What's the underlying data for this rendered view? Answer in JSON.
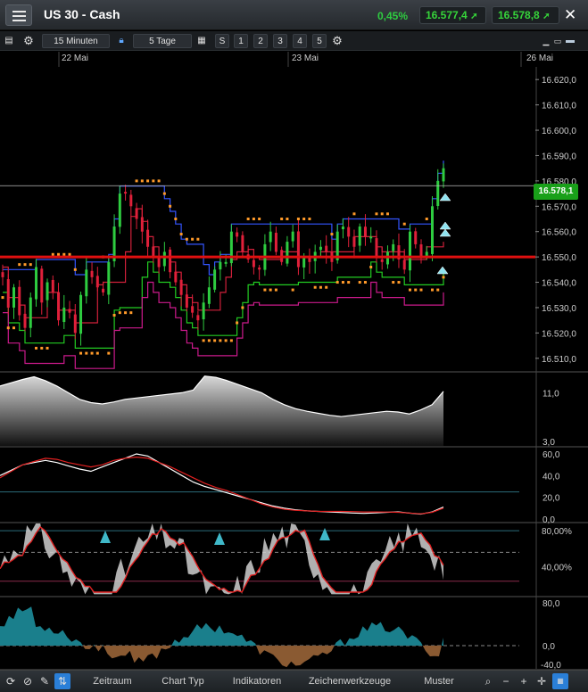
{
  "header": {
    "title": "US 30 - Cash",
    "change_pct": "0,45%",
    "sell_price": "16.577,4",
    "buy_price": "16.578,8"
  },
  "toolbar": {
    "interval": "15 Minuten",
    "range": "5 Tage",
    "studies": [
      "S",
      "1",
      "2",
      "3",
      "4",
      "5"
    ]
  },
  "date_axis": [
    "22 Mai",
    "23 Mai",
    "26 Mai"
  ],
  "current_price_label": "16.578,1",
  "price_axis": [
    "16.620,0",
    "16.610,0",
    "16.600,0",
    "16.590,0",
    "16.580,0",
    "16.570,0",
    "16.560,0",
    "16.550,0",
    "16.540,0",
    "16.530,0",
    "16.520,0",
    "16.510,0"
  ],
  "panel2_axis": [
    "11,0",
    "3,0"
  ],
  "panel3_axis": [
    "60,0",
    "40,0",
    "20,0",
    "0,0"
  ],
  "panel4_axis": [
    "80,00%",
    "40,00%"
  ],
  "panel5_axis": [
    "80,0",
    "0,0",
    "-40,0"
  ],
  "bottombar": {
    "tabs": [
      "Zeitraum",
      "Chart Typ",
      "Indikatoren",
      "Zeichenwerkzeuge",
      "Muster"
    ]
  },
  "colors": {
    "up": "#2ecc40",
    "down": "#e0203a",
    "hline": "#e01010",
    "badge": "#19a019"
  },
  "chart_data": [
    {
      "type": "candlestick",
      "panel": "price",
      "ylim": [
        16505,
        16625
      ],
      "xlabel": "",
      "ylabel": "",
      "close_series": [
        16542,
        16530,
        16538,
        16527,
        16522,
        16534,
        16546,
        16532,
        16540,
        16536,
        16525,
        16530,
        16528,
        16520,
        16535,
        16545,
        16542,
        16538,
        16536,
        16548,
        16562,
        16575,
        16575,
        16570,
        16565,
        16560,
        16554,
        16550,
        16546,
        16552,
        16544,
        16540,
        16535,
        16530,
        16528,
        16525,
        16532,
        16538,
        16545,
        16548,
        16548,
        16560,
        16558,
        16552,
        16549,
        16546,
        16545,
        16555,
        16560,
        16552,
        16548,
        16556,
        16560,
        16546,
        16550,
        16548,
        16552,
        16554,
        16552,
        16548,
        16560,
        16562,
        16558,
        16554,
        16562,
        16558,
        16558,
        16550,
        16548,
        16552,
        16555,
        16549,
        16545,
        16560,
        16555,
        16550,
        16552,
        16570,
        16580,
        16585
      ],
      "current_price": 16578.1,
      "horizontal_line": 16550.0
    },
    {
      "type": "area",
      "panel": "volatility",
      "ylim": [
        3,
        14
      ],
      "values": [
        12,
        12.5,
        13,
        13.4,
        12.8,
        12,
        11,
        10,
        9.5,
        9.3,
        9.6,
        10,
        10.2,
        10.4,
        10.6,
        10.8,
        11,
        11.4,
        13.5,
        13.3,
        12.8,
        12.2,
        11.6,
        11,
        10,
        9.2,
        8.6,
        8.2,
        7.9,
        7.6,
        7.4,
        7.6,
        7.8,
        8,
        8.2,
        8.1,
        7.8,
        8.4,
        9.2,
        11.2
      ]
    },
    {
      "type": "line",
      "panel": "adx",
      "ylim": [
        0,
        60
      ],
      "series": [
        {
          "values": [
            40,
            45,
            50,
            52,
            54,
            52,
            49,
            46,
            44,
            48,
            52,
            56,
            60,
            58,
            52,
            46,
            40,
            34,
            30,
            27,
            24,
            21,
            18,
            15,
            12,
            10,
            8.5,
            7.5,
            7,
            6.5,
            6,
            5.5,
            5.2,
            5.6,
            6.2,
            6.6,
            5.4,
            4.5,
            6.5,
            11
          ]
        },
        {
          "values": [
            38,
            44,
            50,
            53,
            56,
            55,
            52,
            50,
            48,
            50,
            54,
            56,
            57,
            56,
            52,
            48,
            43,
            38,
            33,
            29,
            26,
            22,
            18,
            14,
            11,
            9,
            8,
            7.5,
            7,
            7,
            7,
            6.8,
            6.5,
            6.5,
            6.4,
            6.2,
            5.5,
            4.8,
            6.2,
            10
          ]
        }
      ],
      "reference_line": 25
    },
    {
      "type": "area",
      "panel": "oscillator_pct",
      "ylim": [
        0,
        100
      ],
      "reference_lines": [
        90,
        60,
        20
      ]
    },
    {
      "type": "bar",
      "panel": "histogram",
      "ylim": [
        -40,
        80
      ],
      "reference_line": 0
    }
  ]
}
